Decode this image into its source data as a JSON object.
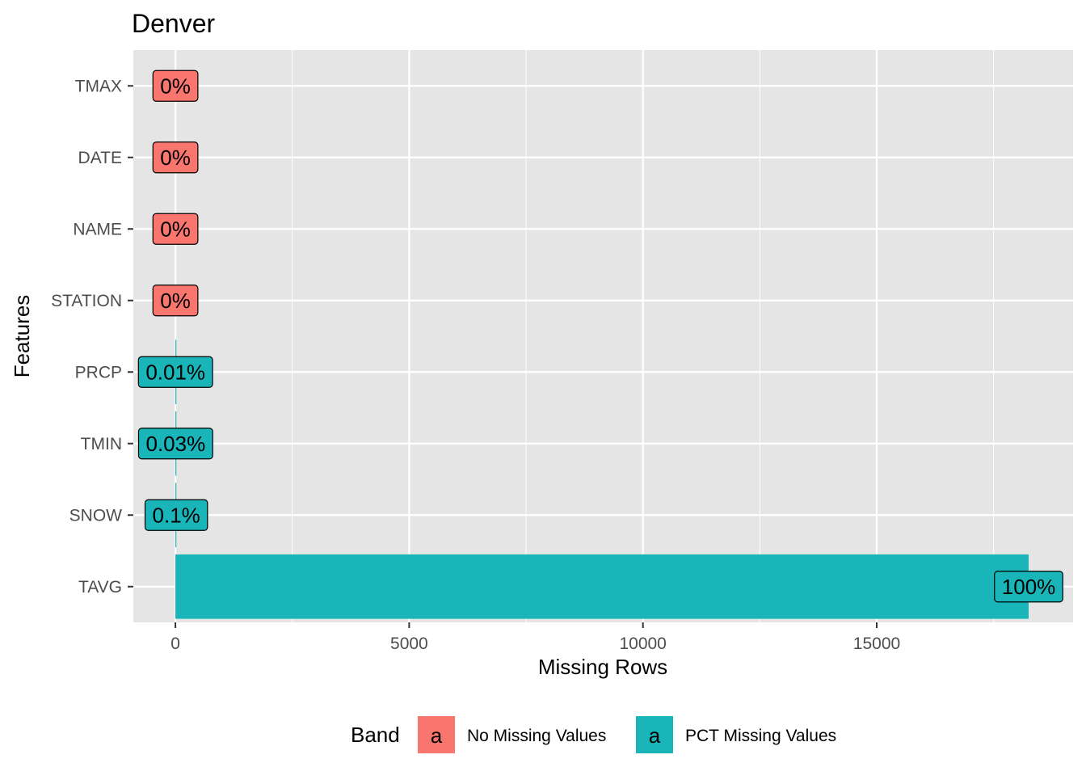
{
  "chart_data": {
    "type": "bar",
    "orientation": "horizontal",
    "title": "Denver",
    "xlabel": "Missing Rows",
    "ylabel": "Features",
    "categories": [
      "TMAX",
      "DATE",
      "NAME",
      "STATION",
      "PRCP",
      "TMIN",
      "SNOW",
      "TAVG"
    ],
    "values": [
      0,
      0,
      0,
      0,
      2,
      5,
      19,
      18250
    ],
    "bands": [
      "No Missing Values",
      "No Missing Values",
      "No Missing Values",
      "No Missing Values",
      "PCT Missing Values",
      "PCT Missing Values",
      "PCT Missing Values",
      "PCT Missing Values"
    ],
    "labels": [
      "0%",
      "0%",
      "0%",
      "0%",
      "0.01%",
      "0.03%",
      "0.1%",
      "100%"
    ],
    "xlim": [
      -900,
      19200
    ],
    "xticks": [
      0,
      5000,
      10000,
      15000
    ],
    "xtick_labels": [
      "0",
      "5000",
      "10000",
      "15000"
    ],
    "grid": true,
    "legend": {
      "title": "Band",
      "placement": "bottom",
      "key_glyph": "a",
      "entries": [
        {
          "name": "No Missing Values",
          "color": "#F8766D"
        },
        {
          "name": "PCT Missing Values",
          "color": "#1AB5B8"
        }
      ]
    },
    "colors": {
      "No Missing Values": "#F8766D",
      "PCT Missing Values": "#1AB5B8",
      "panel": "#E5E5E5",
      "grid": "#FFFFFF"
    }
  }
}
